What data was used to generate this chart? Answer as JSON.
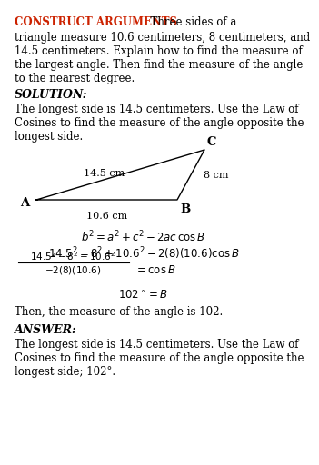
{
  "title_bold": "CONSTRUCT ARGUMENTS",
  "line1_rest": "  Three sides of a",
  "line2": "triangle measure 10.6 centimeters, 8 centimeters, and",
  "line3": "14.5 centimeters. Explain how to find the measure of",
  "line4": "the largest angle. Then find the measure of the angle",
  "line5": "to the nearest degree.",
  "solution_label": "SOLUTION:",
  "sol_line1": "The longest side is 14.5 centimeters. Use the Law of",
  "sol_line2": "Cosines to find the measure of the angle opposite the",
  "sol_line3": "longest side.",
  "label_A": "A",
  "label_B": "B",
  "label_C": "C",
  "side_AB": "10.6 cm",
  "side_AC": "14.5 cm",
  "side_BC": "8 cm",
  "then_text": "Then, the measure of the angle is 102.",
  "answer_label": "ANSWER:",
  "ans_line1": "The longest side is 14.5 centimeters. Use the Law of",
  "ans_line2": "Cosines to find the measure of the angle opposite the",
  "ans_line3": "longest side; 102°.",
  "bg_color": "#ffffff",
  "text_color": "#000000",
  "title_color": "#cc2200",
  "body_fontsize": 8.5,
  "title_fontsize": 8.5
}
